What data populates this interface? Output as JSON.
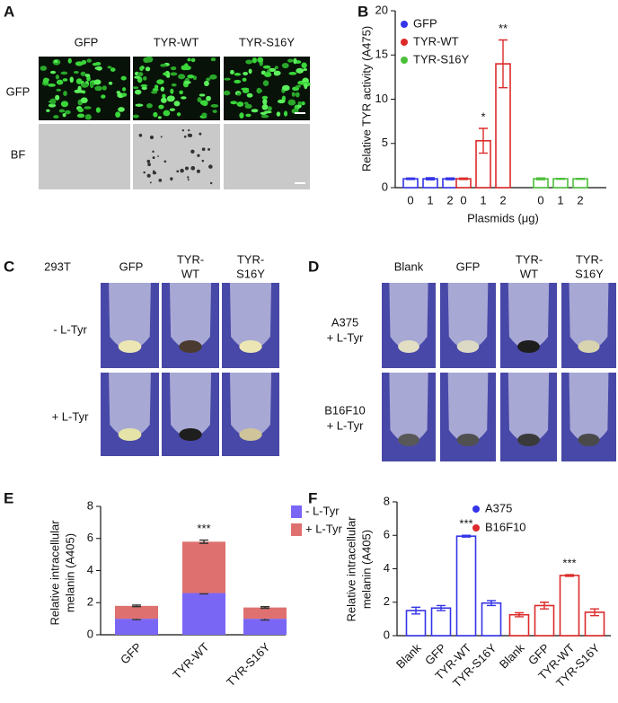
{
  "panel_labels": [
    "A",
    "B",
    "C",
    "D",
    "E",
    "F"
  ],
  "panel_a": {
    "columns": [
      "GFP",
      "TYR-WT",
      "TYR-S16Y"
    ],
    "rows": [
      "GFP",
      "BF"
    ]
  },
  "panel_c": {
    "cell_line": "293T",
    "columns": [
      [
        "GFP"
      ],
      [
        "TYR-",
        "WT"
      ],
      [
        "TYR-",
        "S16Y"
      ]
    ],
    "rows": [
      "- L-Tyr",
      "+ L-Tyr"
    ]
  },
  "panel_d": {
    "columns": [
      [
        "Blank"
      ],
      [
        "GFP"
      ],
      [
        "TYR-",
        "WT"
      ],
      [
        "TYR-",
        "S16Y"
      ]
    ],
    "rows": [
      [
        "A375",
        "+ L-Tyr"
      ],
      [
        "B16F10",
        "+ L-Tyr"
      ]
    ]
  },
  "chart_data": [
    {
      "type": "bar",
      "ylabel": [
        "Relative TYR activity (A475)"
      ],
      "xlabel": "Plasmids (μg)",
      "categories": [
        "0",
        "1",
        "2"
      ],
      "series": [
        {
          "name": "GFP",
          "color": "#3434e8",
          "values": [
            1.0,
            1.0,
            1.0
          ],
          "errors": [
            0.08,
            0.12,
            0.1
          ]
        },
        {
          "name": "TYR-WT",
          "color": "#dc2a2a",
          "values": [
            1.0,
            5.3,
            14.0
          ],
          "errors": [
            0.08,
            1.4,
            2.7
          ]
        },
        {
          "name": "TYR-S16Y",
          "color": "#4cbf3a",
          "values": [
            1.0,
            1.0,
            1.0
          ],
          "errors": [
            0.1,
            0.05,
            0.05
          ]
        }
      ],
      "ylim": [
        0,
        20
      ],
      "yticks": [
        0,
        5,
        10,
        15,
        20
      ],
      "outline": true,
      "annotations": [
        "*",
        "**"
      ]
    },
    {
      "type": "stacked_bar",
      "ylabel": [
        "Relative intracellular",
        "melanin (A405)"
      ],
      "categories": [
        "GFP",
        "TYR-WT",
        "TYR-S16Y"
      ],
      "series": [
        {
          "name": "- L-Tyr",
          "color": "#7a66f5",
          "values": [
            1.0,
            2.6,
            1.0
          ],
          "errors": [
            0.05,
            0.05,
            0.08
          ]
        },
        {
          "name": "+ L-Tyr",
          "color": "#df7070",
          "values": [
            0.8,
            3.2,
            0.7
          ],
          "errors": [
            0.05,
            0.1,
            0.05
          ]
        }
      ],
      "ylim": [
        0,
        8
      ],
      "yticks": [
        0,
        2,
        4,
        6,
        8
      ],
      "outline": false,
      "annotations": [
        "***"
      ]
    },
    {
      "type": "bar",
      "ylabel": [
        "Relative intracellular",
        "melanin (A405)"
      ],
      "categories": [
        "Blank",
        "GFP",
        "TYR-WT",
        "TYR-S16Y"
      ],
      "series": [
        {
          "name": "A375",
          "color": "#3434e8",
          "values": [
            1.5,
            1.65,
            5.95,
            1.95
          ],
          "errors": [
            0.2,
            0.15,
            0.05,
            0.15
          ]
        },
        {
          "name": "B16F10",
          "color": "#dc2a2a",
          "values": [
            1.25,
            1.8,
            3.6,
            1.4
          ],
          "errors": [
            0.12,
            0.2,
            0.05,
            0.2
          ]
        }
      ],
      "ylim": [
        0,
        8
      ],
      "yticks": [
        0,
        2,
        4,
        6,
        8
      ],
      "outline": true,
      "annotations": [
        "***",
        "***"
      ]
    }
  ]
}
